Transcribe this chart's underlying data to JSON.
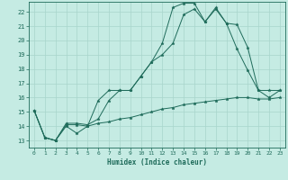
{
  "xlabel": "Humidex (Indice chaleur)",
  "bg_color": "#c5ebe3",
  "grid_color": "#a8d5cb",
  "line_color": "#1e6b5a",
  "marker": "*",
  "xlim": [
    -0.5,
    23.5
  ],
  "ylim": [
    12.5,
    22.7
  ],
  "xticks": [
    0,
    1,
    2,
    3,
    4,
    5,
    6,
    7,
    8,
    9,
    10,
    11,
    12,
    13,
    14,
    15,
    16,
    17,
    18,
    19,
    20,
    21,
    22,
    23
  ],
  "yticks": [
    13,
    14,
    15,
    16,
    17,
    18,
    19,
    20,
    21,
    22
  ],
  "series1_x": [
    0,
    1,
    2,
    3,
    4,
    5,
    6,
    7,
    8,
    9,
    10,
    11,
    12,
    13,
    14,
    15,
    16,
    17,
    18,
    19,
    20,
    21,
    22,
    23
  ],
  "series1_y": [
    15.1,
    13.2,
    13.0,
    14.2,
    14.2,
    14.1,
    14.5,
    15.8,
    16.5,
    16.5,
    17.5,
    18.5,
    19.8,
    22.3,
    22.6,
    22.6,
    21.3,
    22.3,
    21.2,
    21.1,
    19.5,
    16.5,
    16.5,
    16.5
  ],
  "series2_x": [
    0,
    1,
    2,
    3,
    4,
    5,
    6,
    7,
    8,
    9,
    10,
    11,
    12,
    13,
    14,
    15,
    16,
    17,
    18,
    19,
    20,
    21,
    22,
    23
  ],
  "series2_y": [
    15.1,
    13.2,
    13.0,
    14.1,
    14.1,
    14.0,
    15.8,
    16.5,
    16.5,
    16.5,
    17.5,
    18.5,
    19.0,
    19.8,
    21.8,
    22.2,
    21.3,
    22.2,
    21.2,
    19.4,
    17.9,
    16.5,
    16.0,
    16.5
  ],
  "series3_x": [
    0,
    1,
    2,
    3,
    4,
    5,
    6,
    7,
    8,
    9,
    10,
    11,
    12,
    13,
    14,
    15,
    16,
    17,
    18,
    19,
    20,
    21,
    22,
    23
  ],
  "series3_y": [
    15.1,
    13.2,
    13.0,
    14.0,
    13.5,
    14.0,
    14.2,
    14.3,
    14.5,
    14.6,
    14.8,
    15.0,
    15.2,
    15.3,
    15.5,
    15.6,
    15.7,
    15.8,
    15.9,
    16.0,
    16.0,
    15.9,
    15.9,
    16.0
  ]
}
